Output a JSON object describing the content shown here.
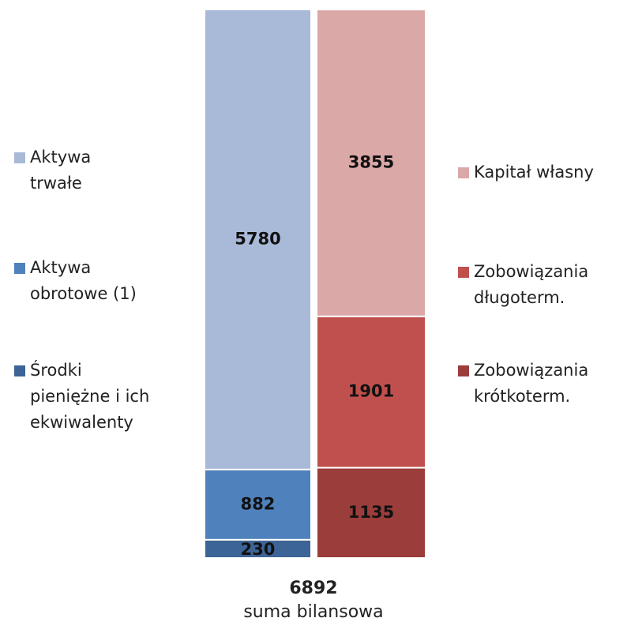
{
  "chart_data": {
    "type": "stacked_bar",
    "categories": [
      null,
      null
    ],
    "series": [
      {
        "name": "Środki pieniężne i ich ekwiwalenty",
        "color": "#3d6496",
        "values": [
          230,
          null
        ]
      },
      {
        "name": "Aktywa obrotowe (1)",
        "color": "#4f81bd",
        "values": [
          882,
          null
        ]
      },
      {
        "name": "Aktywa trwałe",
        "color": "#a9bad8",
        "values": [
          5780,
          null
        ]
      },
      {
        "name": "Zobowiązania krótkoterm.",
        "color": "#9b3d3b",
        "values": [
          null,
          1135
        ]
      },
      {
        "name": "Zobowiązania długoterm.",
        "color": "#c0504d",
        "values": [
          null,
          1901
        ]
      },
      {
        "name": "Kapitał własny",
        "color": "#dba8a8",
        "values": [
          null,
          3855
        ]
      }
    ],
    "total": {
      "value": 6892,
      "label": "suma bilansowa"
    }
  }
}
